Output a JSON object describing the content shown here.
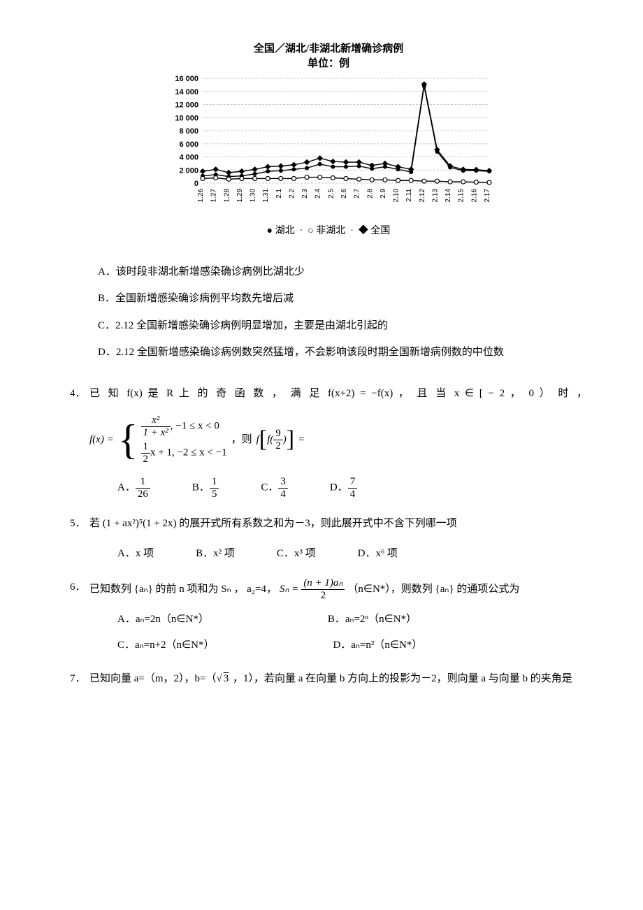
{
  "chart": {
    "title_line1": "全国／湖北/非湖北新增确诊病例",
    "title_line2": "单位：例",
    "title_fontsize": 15,
    "background_color": "#ffffff",
    "grid_color": "#c8c8c8",
    "series_color": "#000000",
    "y": {
      "min": 0,
      "max": 16000,
      "step": 2000
    },
    "dates": [
      "1.26",
      "1.27",
      "1.28",
      "1.29",
      "1.30",
      "1.31",
      "2.1",
      "2.2",
      "2.3",
      "2.4",
      "2.5",
      "2.6",
      "2.7",
      "2.8",
      "2.9",
      "2.10",
      "2.11",
      "2.12",
      "2.13",
      "2.14",
      "2.15",
      "2.16",
      "2.17"
    ],
    "series": {
      "hubei": [
        1100,
        1300,
        1000,
        1100,
        1400,
        1800,
        1900,
        2100,
        2300,
        2900,
        2500,
        2500,
        2600,
        2200,
        2500,
        2100,
        1700,
        14800,
        4800,
        2400,
        1900,
        1900,
        1800
      ],
      "nonhubei": [
        700,
        800,
        600,
        700,
        700,
        700,
        700,
        700,
        900,
        900,
        800,
        700,
        600,
        500,
        500,
        400,
        400,
        300,
        300,
        200,
        200,
        150,
        100
      ],
      "nation": [
        1800,
        2100,
        1600,
        1800,
        2100,
        2500,
        2600,
        2800,
        3200,
        3800,
        3300,
        3200,
        3200,
        2700,
        3000,
        2500,
        2100,
        15100,
        5100,
        2600,
        2100,
        2050,
        1900
      ]
    },
    "legend": {
      "hubei": "湖北",
      "nonhubei": "非湖北",
      "nation": "全国"
    }
  },
  "q3": {
    "A": "A．该时段非湖北新增感染确诊病例比湖北少",
    "B": "B．全国新增感染确诊病例平均数先增后减",
    "C": "C．2.12 全国新增感染确诊病例明显增加，主要是由湖北引起的",
    "D": "D．2.12 全国新增感染确诊病例数突然猛增，不会影响该段时期全国新增病例数的中位数"
  },
  "q4": {
    "num": "4．",
    "stem_l1": "已 知 f(x) 是  R  上 的 奇 函 数 ， 满 足 f(x+2) = −f(x) ， 且 当  x  ∈ [ − 2 ， 0 ） 时 ，",
    "piece1_rhs": ", −1 ≤ x < 0",
    "piece2_rhs": "x + 1, −2 ≤ x < −1",
    "then": "，则",
    "eq_end": "=",
    "opts": {
      "A": "A．",
      "B": "B．",
      "C": "C．",
      "D": "D．"
    },
    "fracs": {
      "A": {
        "n": "1",
        "d": "26"
      },
      "B": {
        "n": "1",
        "d": "5"
      },
      "C": {
        "n": "3",
        "d": "4"
      },
      "D": {
        "n": "7",
        "d": "4"
      },
      "half": {
        "n": "1",
        "d": "2"
      },
      "nine2": {
        "n": "9",
        "d": "2"
      },
      "xsq": {
        "n": "x²",
        "d": "1 + x²"
      }
    }
  },
  "q5": {
    "num": "5．",
    "stem": "若 (1 + ax²)⁵(1 + 2x) 的展开式所有系数之和为－3，则此展开式中不含下列哪一项",
    "opts": {
      "A": "A．x 项",
      "B": "B．x² 项",
      "C": "C．x³ 项",
      "D": "D．x⁶ 项"
    }
  },
  "q6": {
    "num": "6．",
    "stem_before": "已知数列 {aₙ} 的前 n 项和为 Sₙ ， a₂=4，",
    "sn": "Sₙ =",
    "frac": {
      "n": "(n + 1)aₙ",
      "d": "2"
    },
    "stem_after": "（n∈N*），则数列 {aₙ} 的通项公式为",
    "opts": {
      "A": "A．aₙ=2n（n∈N*）",
      "B": "B．aₙ=2ⁿ（n∈N*）",
      "C": "C．aₙ=n+2（n∈N*）",
      "D": "D．aₙ=n²（n∈N*）"
    }
  },
  "q7": {
    "num": "7．",
    "stem_before": "已知向量 a=（m，2），b=（",
    "sqrt": "3",
    "stem_after": " ，1），若向量 a 在向量 b 方向上的投影为－2，则向量 a 与向量 b 的夹角是"
  }
}
